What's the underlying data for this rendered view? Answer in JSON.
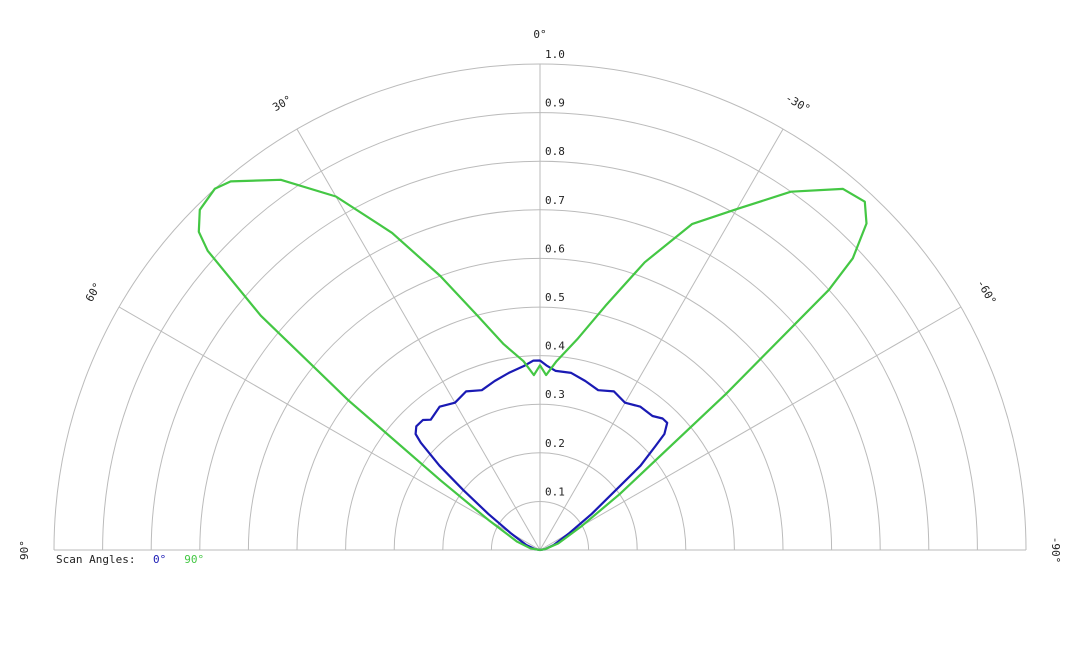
{
  "chart_data": {
    "type": "polar",
    "legend_title": "Scan Angles:",
    "theta": [
      90,
      80,
      70,
      60,
      55,
      52,
      50,
      48,
      47,
      45,
      42,
      40,
      35,
      30,
      25,
      20,
      15,
      10,
      5,
      2,
      0,
      -2,
      -5,
      -10,
      -15,
      -20,
      -25,
      -30,
      -35,
      -40,
      -43,
      -45,
      -47,
      -48,
      -50,
      -55,
      -60,
      -70,
      -80,
      -90
    ],
    "series": [
      {
        "name": "0°",
        "color": "#1a1ab4",
        "values": [
          0,
          0.01,
          0.03,
          0.07,
          0.13,
          0.2,
          0.27,
          0.33,
          0.35,
          0.36,
          0.36,
          0.35,
          0.36,
          0.35,
          0.36,
          0.35,
          0.36,
          0.37,
          0.38,
          0.39,
          0.39,
          0.38,
          0.37,
          0.37,
          0.36,
          0.35,
          0.36,
          0.35,
          0.36,
          0.36,
          0.37,
          0.37,
          0.35,
          0.32,
          0.27,
          0.13,
          0.07,
          0.03,
          0.01,
          0
        ]
      },
      {
        "name": "90°",
        "color": "#44c744",
        "values": [
          0,
          0.02,
          0.05,
          0.12,
          0.25,
          0.5,
          0.75,
          0.92,
          0.96,
          0.99,
          1.0,
          0.99,
          0.93,
          0.84,
          0.72,
          0.6,
          0.5,
          0.43,
          0.39,
          0.36,
          0.38,
          0.36,
          0.39,
          0.44,
          0.52,
          0.63,
          0.74,
          0.81,
          0.9,
          0.97,
          0.98,
          0.95,
          0.88,
          0.8,
          0.5,
          0.2,
          0.1,
          0.04,
          0.01,
          0
        ]
      }
    ],
    "thetalim": [
      90,
      -90
    ],
    "thetaticks": [
      {
        "value": 90,
        "label": "90°"
      },
      {
        "value": 60,
        "label": "60°"
      },
      {
        "value": 30,
        "label": "30°"
      },
      {
        "value": 0,
        "label": "0°"
      },
      {
        "value": -30,
        "label": "-30°"
      },
      {
        "value": -60,
        "label": "-60°"
      },
      {
        "value": -90,
        "label": "-90°"
      }
    ],
    "rlim": [
      0,
      1
    ],
    "rticks": [
      0.1,
      0.2,
      0.3,
      0.4,
      0.5,
      0.6,
      0.7,
      0.8,
      0.9,
      {
        "value": 1,
        "label": "1.0"
      }
    ],
    "grid": true
  }
}
